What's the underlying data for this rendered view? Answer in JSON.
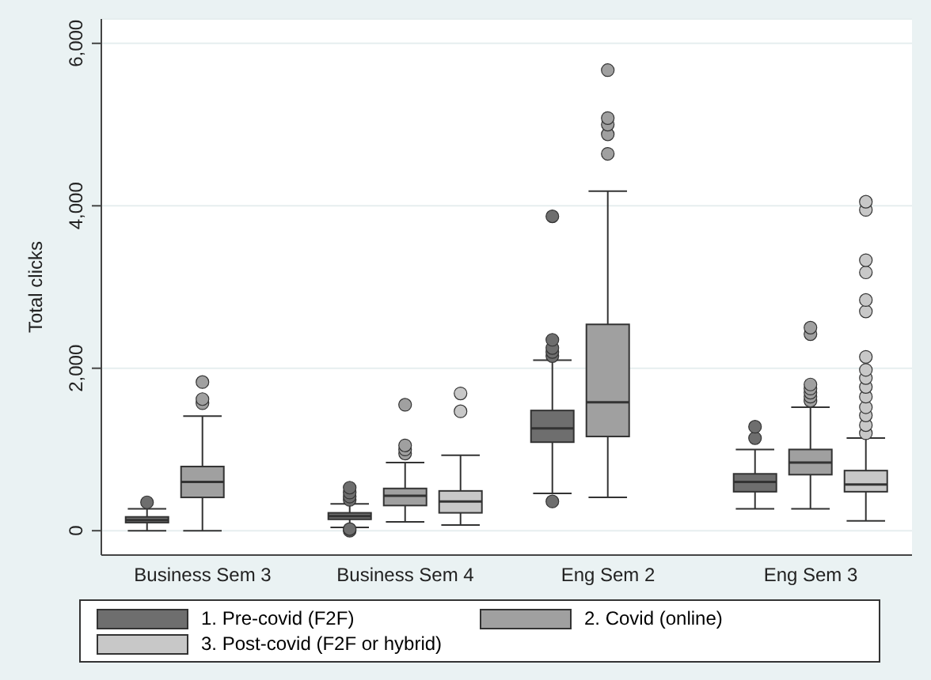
{
  "chart_data": {
    "type": "box",
    "ylabel": "Total clicks",
    "categories": [
      "Business Sem 3",
      "Business Sem 4",
      "Eng Sem 2",
      "Eng Sem 3"
    ],
    "ylim": [
      -300,
      6300
    ],
    "yticks": [
      {
        "value": 0,
        "label": "0"
      },
      {
        "value": 2000,
        "label": "2,000"
      },
      {
        "value": 4000,
        "label": "4,000"
      },
      {
        "value": 6000,
        "label": "6,000"
      }
    ],
    "grid": "y",
    "legend": "bottom",
    "series": [
      {
        "name": "1. Pre-covid (F2F)",
        "color": "#6e6e6e",
        "boxes": [
          {
            "low": 0,
            "q1": 100,
            "median": 130,
            "q3": 170,
            "high": 270,
            "outliers": [
              350
            ]
          },
          {
            "low": 40,
            "q1": 140,
            "median": 180,
            "q3": 220,
            "high": 330,
            "outliers": [
              0,
              20,
              380,
              420,
              470,
              530
            ]
          },
          {
            "low": 460,
            "q1": 1090,
            "median": 1260,
            "q3": 1480,
            "high": 2100,
            "outliers": [
              360,
              2150,
              2200,
              2250,
              2350,
              3870
            ]
          },
          {
            "low": 270,
            "q1": 480,
            "median": 600,
            "q3": 700,
            "high": 1000,
            "outliers": [
              1140,
              1280
            ]
          }
        ]
      },
      {
        "name": "2. Covid (online)",
        "color": "#a0a0a0",
        "boxes": [
          {
            "low": 0,
            "q1": 410,
            "median": 600,
            "q3": 790,
            "high": 1410,
            "outliers": [
              1570,
              1620,
              1830
            ]
          },
          {
            "low": 110,
            "q1": 310,
            "median": 430,
            "q3": 520,
            "high": 840,
            "outliers": [
              950,
              1000,
              1050,
              1550
            ]
          },
          {
            "low": 410,
            "q1": 1160,
            "median": 1580,
            "q3": 2540,
            "high": 4180,
            "outliers": [
              4640,
              4880,
              5000,
              5080,
              5670
            ]
          },
          {
            "low": 270,
            "q1": 690,
            "median": 840,
            "q3": 1000,
            "high": 1520,
            "outliers": [
              1600,
              1650,
              1700,
              1750,
              1800,
              2420,
              2500
            ]
          }
        ]
      },
      {
        "name": "3. Post-covid (F2F or hybrid)",
        "color": "#c8c8c8",
        "boxes": [
          null,
          {
            "low": 70,
            "q1": 220,
            "median": 360,
            "q3": 490,
            "high": 930,
            "outliers": [
              1470,
              1690
            ]
          },
          null,
          {
            "low": 120,
            "q1": 480,
            "median": 570,
            "q3": 740,
            "high": 1140,
            "outliers": [
              1200,
              1300,
              1420,
              1520,
              1650,
              1770,
              1880,
              1980,
              2140,
              2700,
              2840,
              3180,
              3330,
              3950,
              4050
            ]
          }
        ]
      }
    ]
  }
}
